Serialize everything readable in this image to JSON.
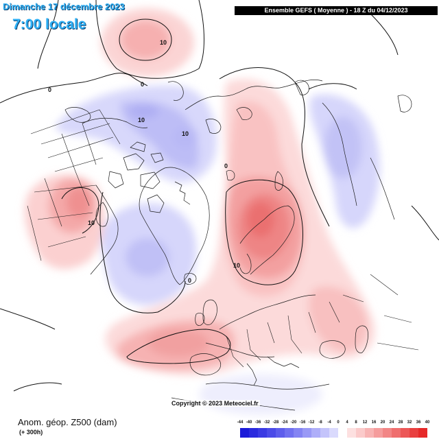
{
  "header": {
    "date": "Dimanche 17 décembre 2023",
    "local_time": "7:00 locale",
    "model_run": "Ensemble GEFS  ( Moyenne )  - 18 Z du 04/12/2023"
  },
  "map": {
    "projection": "polar stereographic, North Pole",
    "field": "500 hPa geopotential height anomaly",
    "contour_labels": [
      "10",
      "0",
      "0",
      "10",
      "10",
      "0",
      "10",
      "10",
      "0"
    ],
    "colors": {
      "ocean": "#ffffff",
      "coastline": "#1a1a1a",
      "contour": "#111111"
    }
  },
  "footer": {
    "copyright": "Copyright © 2023 Meteociel.fr",
    "variable": "Anom. géop. Z500 (dam)",
    "lead_time": "(+ 300h)"
  },
  "legend": {
    "ticks": [
      "-44",
      "-40",
      "-36",
      "-32",
      "-28",
      "-24",
      "-20",
      "-16",
      "-12",
      "-8",
      "-4",
      "0",
      "4",
      "8",
      "12",
      "16",
      "20",
      "24",
      "28",
      "32",
      "36",
      "40"
    ],
    "colors": [
      "#1b1bd9",
      "#2a2ade",
      "#3a3ae3",
      "#4b4be8",
      "#5d5dec",
      "#7070f0",
      "#8484f3",
      "#9999f6",
      "#aeaef9",
      "#c4c4fb",
      "#dadafd",
      "#ffffff",
      "#fde0e0",
      "#fbcaca",
      "#f8b3b3",
      "#f59c9c",
      "#f28585",
      "#ef6e6e",
      "#ec5757",
      "#e94040",
      "#e62929"
    ]
  }
}
